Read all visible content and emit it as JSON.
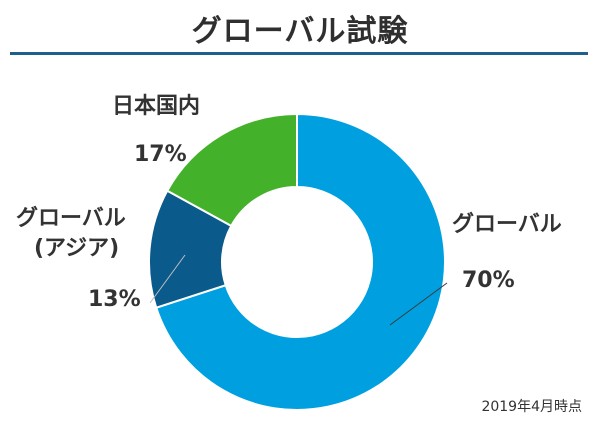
{
  "chart_data": {
    "type": "pie",
    "variant": "donut",
    "title": "グローバル試験",
    "categories": [
      "グローバル",
      "グローバル(アジア)",
      "日本国内"
    ],
    "values": [
      70,
      13,
      17
    ],
    "unit": "%",
    "colors": [
      "#00a0e0",
      "#0b5a8c",
      "#44b12a"
    ],
    "labels": [
      {
        "name_lines": [
          "グローバル"
        ],
        "value_text": "70%"
      },
      {
        "name_lines": [
          "グローバル",
          "(アジア)"
        ],
        "value_text": "13%"
      },
      {
        "name_lines": [
          "日本国内"
        ],
        "value_text": "17%"
      }
    ],
    "note": "2019年4月時点"
  }
}
